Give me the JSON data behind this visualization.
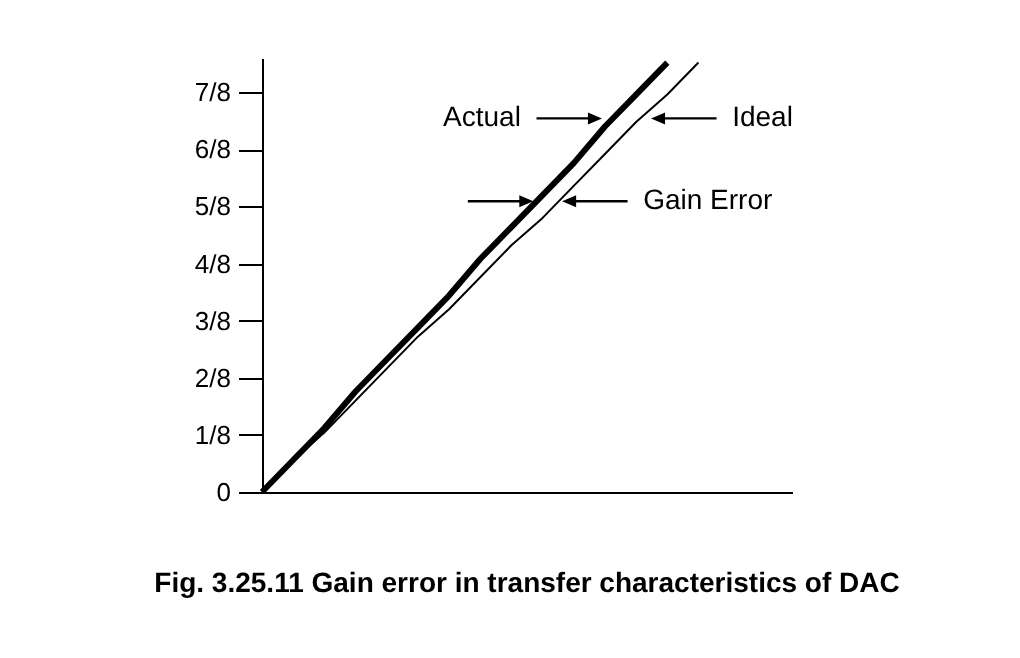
{
  "chart_data": {
    "type": "line",
    "title": "Fig. 3.25.11 Gain error in transfer characteristics of DAC",
    "categories": [
      null,
      null,
      null,
      null,
      null,
      null,
      null,
      null,
      null,
      null,
      null,
      null,
      null,
      null,
      null,
      null,
      null,
      null
    ],
    "ylim": [
      0,
      0.95
    ],
    "yticks": [
      0,
      {
        "value": 0.125,
        "label": "1/8"
      },
      {
        "value": 0.25,
        "label": "2/8"
      },
      {
        "value": 0.375,
        "label": "3/8"
      },
      {
        "value": 0.5,
        "label": "4/8"
      },
      {
        "value": 0.625,
        "label": "5/8"
      },
      {
        "value": 0.75,
        "label": "6/8"
      },
      {
        "value": 0.875,
        "label": "7/8"
      }
    ],
    "tick_labels": "y",
    "series": [
      {
        "name": "Actual",
        "color": "#000000",
        "values": [
          0,
          0.07,
          0.14,
          0.22,
          0.29,
          0.36,
          0.43,
          0.51,
          0.58,
          0.65,
          0.72,
          0.8,
          0.87,
          0.94,
          null,
          null,
          null,
          null
        ]
      },
      {
        "name": "Ideal",
        "color": "#000000",
        "values": [
          0,
          0.07,
          0.13,
          0.2,
          0.27,
          0.34,
          0.4,
          0.47,
          0.54,
          0.6,
          0.67,
          0.74,
          0.81,
          0.87,
          0.94,
          null,
          null,
          null
        ]
      }
    ],
    "annotations": [
      "Gain Error"
    ]
  }
}
